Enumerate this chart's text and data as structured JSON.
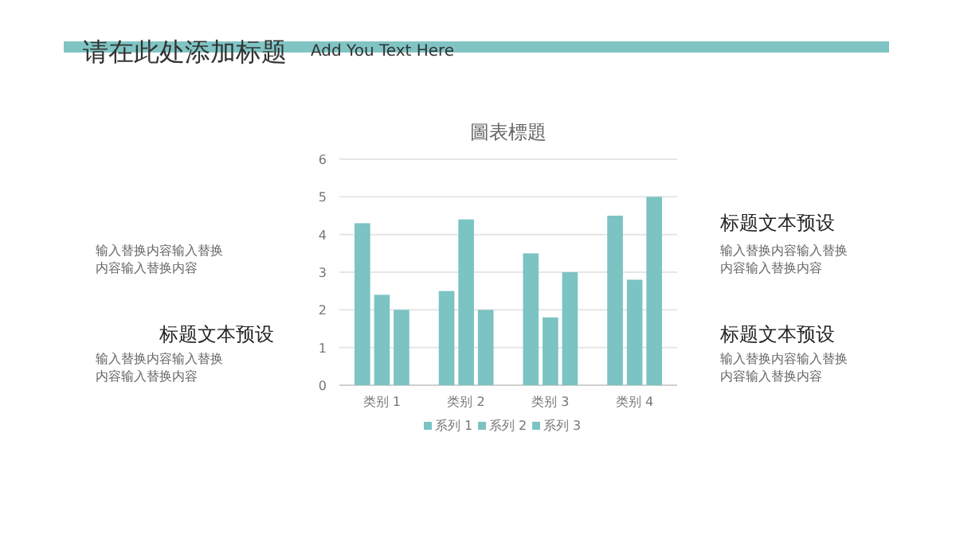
{
  "chart_data": {
    "type": "bar",
    "title": "圖表標題",
    "categories": [
      "类别 1",
      "类别 2",
      "类别 3",
      "类别 4"
    ],
    "series": [
      {
        "name": "系列 1",
        "color": "#7cc3c3",
        "values": [
          4.3,
          2.5,
          3.5,
          4.5
        ]
      },
      {
        "name": "系列 2",
        "color": "#7cc3c3",
        "values": [
          2.4,
          4.4,
          1.8,
          2.8
        ]
      },
      {
        "name": "系列 3",
        "color": "#7cc3c3",
        "values": [
          2,
          2,
          3,
          5
        ]
      }
    ],
    "ylim": [
      0,
      6
    ],
    "yticks": [
      0,
      1,
      2,
      3,
      4,
      5,
      6
    ],
    "grid": "y",
    "legend": "bottom",
    "annotations": [
      "请在此处添加标题",
      "Add You Text Here",
      "输入替换内容输入替换内容输入替换内容",
      "标题文本预设",
      "输入替换内容输入替换内容输入替换内容",
      "标题文本预设",
      "输入替换内容输入替换内容输入替换内容",
      "标题文本预设",
      "输入替换内容输入替换内容输入替换内容"
    ]
  }
}
